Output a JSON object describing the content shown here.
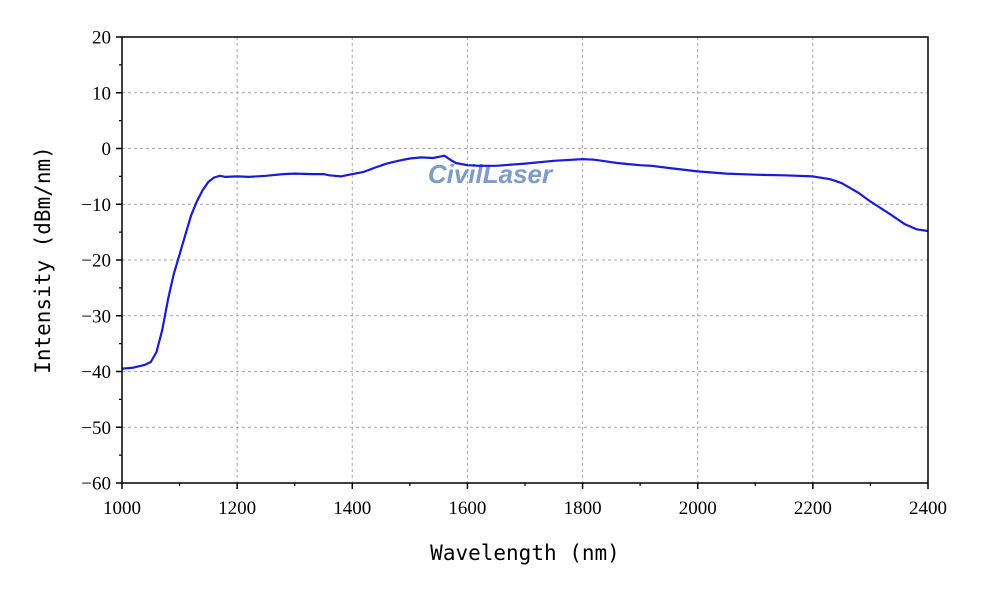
{
  "chart_data": {
    "type": "line",
    "title": "",
    "xlabel": "Wavelength (nm)",
    "ylabel": "Intensity (dBm/nm)",
    "xlim": [
      1000,
      2400
    ],
    "ylim": [
      -60,
      20
    ],
    "xticks": [
      1000,
      1200,
      1400,
      1600,
      1800,
      2000,
      2200,
      2400
    ],
    "yticks": [
      20,
      10,
      0,
      -10,
      -20,
      -30,
      -40,
      -50,
      -60
    ],
    "xtick_labels": [
      "1000",
      "1200",
      "1400",
      "1600",
      "1800",
      "2000",
      "2200",
      "2400"
    ],
    "ytick_labels": [
      "20",
      "10",
      "0",
      "−10",
      "−20",
      "−30",
      "−40",
      "−50",
      "−60"
    ],
    "grid": true,
    "legend": "none",
    "series": [
      {
        "color": "#1a1adb",
        "x": [
          1000,
          1020,
          1040,
          1050,
          1060,
          1070,
          1080,
          1090,
          1100,
          1110,
          1120,
          1130,
          1140,
          1150,
          1160,
          1170,
          1180,
          1200,
          1220,
          1250,
          1280,
          1300,
          1330,
          1350,
          1360,
          1380,
          1400,
          1420,
          1440,
          1460,
          1480,
          1500,
          1520,
          1540,
          1550,
          1560,
          1570,
          1580,
          1600,
          1620,
          1650,
          1700,
          1750,
          1800,
          1820,
          1840,
          1860,
          1880,
          1900,
          1920,
          1950,
          2000,
          2050,
          2100,
          2150,
          2200,
          2230,
          2250,
          2280,
          2300,
          2330,
          2360,
          2380,
          2400
        ],
        "y": [
          -39.5,
          -39.3,
          -38.8,
          -38.3,
          -36.5,
          -32.5,
          -27.0,
          -22.5,
          -19.0,
          -15.5,
          -12.0,
          -9.5,
          -7.5,
          -6.0,
          -5.2,
          -4.9,
          -5.1,
          -5.0,
          -5.1,
          -4.9,
          -4.6,
          -4.5,
          -4.6,
          -4.6,
          -4.8,
          -5.0,
          -4.6,
          -4.2,
          -3.4,
          -2.7,
          -2.2,
          -1.8,
          -1.6,
          -1.7,
          -1.5,
          -1.3,
          -2.0,
          -2.6,
          -3.0,
          -3.1,
          -3.1,
          -2.7,
          -2.2,
          -1.9,
          -2.0,
          -2.3,
          -2.6,
          -2.8,
          -3.0,
          -3.1,
          -3.5,
          -4.1,
          -4.5,
          -4.7,
          -4.8,
          -5.0,
          -5.5,
          -6.2,
          -8.0,
          -9.5,
          -11.5,
          -13.6,
          -14.5,
          -14.8
        ]
      }
    ],
    "watermark": "CivilLaser"
  }
}
